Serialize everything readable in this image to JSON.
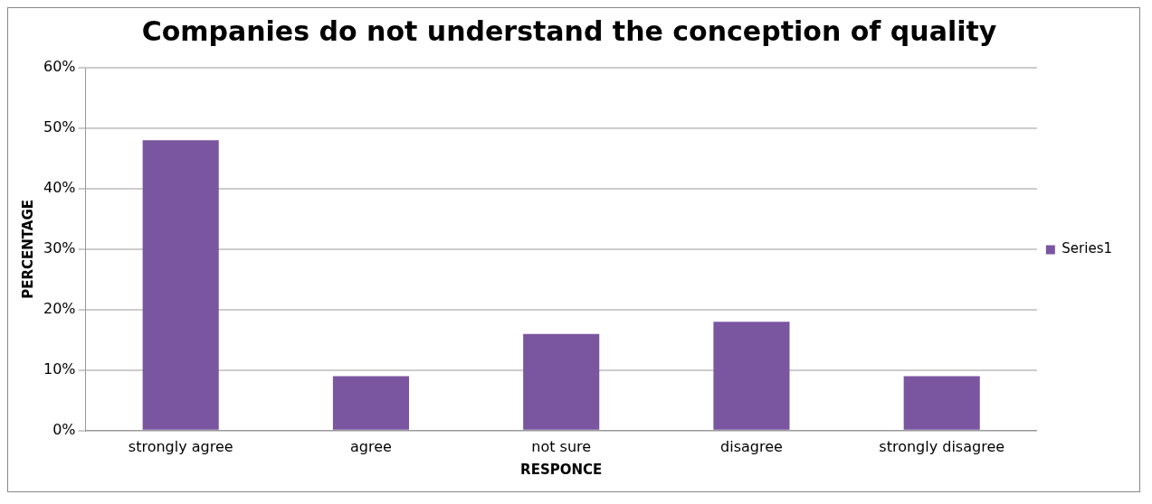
{
  "chart_data": {
    "type": "bar",
    "title": "Companies do not understand the conception of quality",
    "xlabel": "RESPONCE",
    "ylabel": "PERCENTAGE",
    "categories": [
      "strongly agree",
      "agree",
      "not sure",
      "disagree",
      "strongly disagree"
    ],
    "series": [
      {
        "name": "Series1",
        "color": "#7a55a0",
        "values": [
          48,
          9,
          16,
          18,
          9
        ]
      }
    ],
    "ylim": [
      0,
      60
    ],
    "yticks": [
      {
        "value": 0,
        "label": "0%"
      },
      {
        "value": 10,
        "label": "10%"
      },
      {
        "value": 20,
        "label": "20%"
      },
      {
        "value": 30,
        "label": "30%"
      },
      {
        "value": 40,
        "label": "40%"
      },
      {
        "value": 50,
        "label": "50%"
      },
      {
        "value": 60,
        "label": "60%"
      }
    ],
    "grid": "y",
    "legend": "right"
  }
}
